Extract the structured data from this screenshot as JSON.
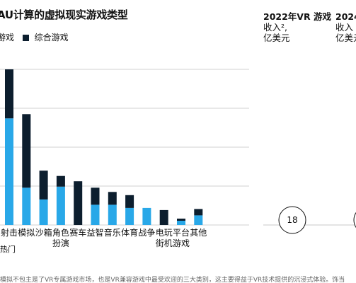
{
  "title": "AU计算的虚拟现实游戏类型",
  "legend": [
    {
      "label": "游戏",
      "color": "#29a8e8"
    },
    {
      "label": "综合游戏",
      "color": "#0c1e2e"
    }
  ],
  "panel_2022": {
    "head": "2022年VR 游戏",
    "line2": "收入²,",
    "line3": "亿美元",
    "value": "18"
  },
  "panel_2024": {
    "head": "2024",
    "line2": "收入",
    "line3": "亿美元"
  },
  "footnote": "模拟不包主是了VR专属游戏市场，也是VR兼容游戏中最受欢迎的三大类别，这主要得益于VR技术提供的沉浸式体验。饰当",
  "chart_data": {
    "type": "bar",
    "stacked": true,
    "categories": [
      "射击",
      "模拟",
      "沙箱",
      "角色扮演",
      "赛车",
      "益智",
      "音乐",
      "体育",
      "战争",
      "电玩街机",
      "平台游戏",
      "其他"
    ],
    "category_lines": [
      [
        "射击"
      ],
      [
        "模拟"
      ],
      [
        "沙箱"
      ],
      [
        "角色",
        "扮演"
      ],
      [
        "赛车"
      ],
      [
        "益智"
      ],
      [
        "音乐"
      ],
      [
        "体育"
      ],
      [
        "战争"
      ],
      [
        "电玩",
        "街机"
      ],
      [
        "平台",
        "游戏"
      ],
      [
        "其他"
      ]
    ],
    "series": [
      {
        "name": "游戏",
        "color": "#29a8e8",
        "values": [
          100,
          35,
          24,
          36,
          0,
          19,
          19,
          16,
          16,
          0,
          4,
          9
        ]
      },
      {
        "name": "综合游戏",
        "color": "#0c1e2e",
        "values": [
          46,
          69,
          27,
          10,
          41,
          16,
          12,
          12,
          0,
          14,
          2,
          6
        ]
      }
    ],
    "extra_label": "热门"
  }
}
